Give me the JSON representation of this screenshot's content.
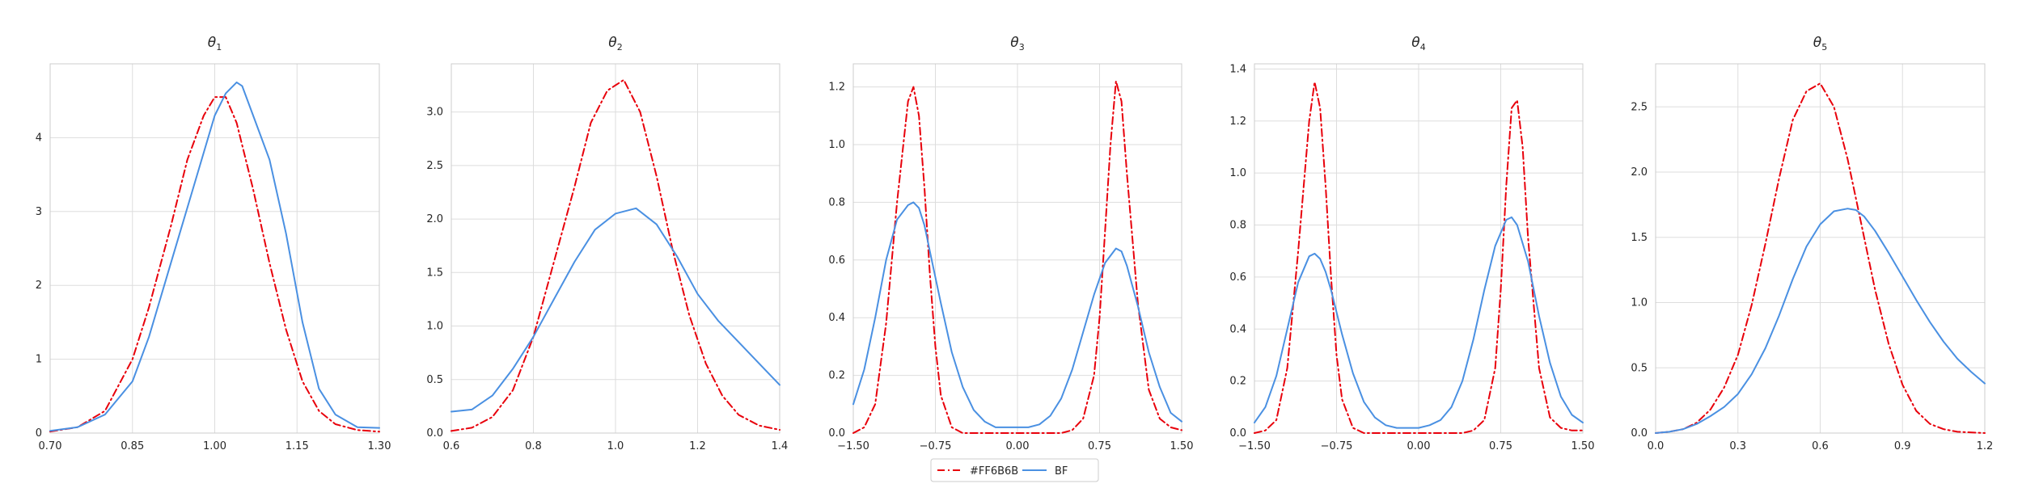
{
  "colors": {
    "series_1": "#e8000b",
    "series_2": "#4a90e2",
    "grid": "#dddddd",
    "axis": "#cccccc",
    "legend_border": "#cccccc"
  },
  "legend": {
    "placement": "bottom-center",
    "entries": [
      "#FF6B6B",
      "BF"
    ]
  },
  "chart_data": [
    {
      "type": "line",
      "title_symbol": "θ",
      "title_sub": "1",
      "xlim": [
        0.7,
        1.3
      ],
      "ylim": [
        0,
        5
      ],
      "xticks": [
        0.7,
        0.85,
        1.0,
        1.15,
        1.3
      ],
      "xtick_labels": [
        "0.70",
        "0.85",
        "1.00",
        "1.15",
        "1.30"
      ],
      "yticks": [
        0,
        1,
        2,
        3,
        4
      ],
      "ytick_labels": [
        "0",
        "1",
        "2",
        "3",
        "4"
      ],
      "grid": true,
      "series": [
        {
          "name": "#FF6B6B",
          "style": "dashdot",
          "x": [
            0.7,
            0.75,
            0.8,
            0.85,
            0.88,
            0.92,
            0.95,
            0.98,
            1.0,
            1.02,
            1.04,
            1.07,
            1.1,
            1.13,
            1.16,
            1.19,
            1.22,
            1.26,
            1.3
          ],
          "y": [
            0.02,
            0.08,
            0.3,
            1.0,
            1.7,
            2.8,
            3.7,
            4.3,
            4.55,
            4.55,
            4.2,
            3.3,
            2.3,
            1.4,
            0.7,
            0.3,
            0.12,
            0.04,
            0.02
          ]
        },
        {
          "name": "BF",
          "style": "solid",
          "x": [
            0.7,
            0.75,
            0.8,
            0.85,
            0.88,
            0.92,
            0.96,
            1.0,
            1.02,
            1.04,
            1.05,
            1.07,
            1.1,
            1.13,
            1.16,
            1.19,
            1.22,
            1.26,
            1.3
          ],
          "y": [
            0.03,
            0.08,
            0.25,
            0.7,
            1.3,
            2.3,
            3.3,
            4.3,
            4.6,
            4.75,
            4.7,
            4.3,
            3.7,
            2.7,
            1.5,
            0.6,
            0.25,
            0.08,
            0.07
          ]
        }
      ]
    },
    {
      "type": "line",
      "title_symbol": "θ",
      "title_sub": "2",
      "xlim": [
        0.6,
        1.4
      ],
      "ylim": [
        0,
        3.45
      ],
      "xticks": [
        0.6,
        0.8,
        1.0,
        1.2,
        1.4
      ],
      "xtick_labels": [
        "0.6",
        "0.8",
        "1.0",
        "1.2",
        "1.4"
      ],
      "yticks": [
        0,
        0.5,
        1.0,
        1.5,
        2.0,
        2.5,
        3.0
      ],
      "ytick_labels": [
        "0.0",
        "0.5",
        "1.0",
        "1.5",
        "2.0",
        "2.5",
        "3.0"
      ],
      "grid": true,
      "series": [
        {
          "name": "#FF6B6B",
          "style": "dashdot",
          "x": [
            0.6,
            0.65,
            0.7,
            0.75,
            0.8,
            0.85,
            0.9,
            0.94,
            0.98,
            1.02,
            1.06,
            1.1,
            1.14,
            1.18,
            1.22,
            1.26,
            1.3,
            1.35,
            1.4
          ],
          "y": [
            0.02,
            0.05,
            0.15,
            0.4,
            0.9,
            1.6,
            2.3,
            2.9,
            3.2,
            3.3,
            3.0,
            2.4,
            1.7,
            1.1,
            0.65,
            0.35,
            0.17,
            0.07,
            0.03
          ]
        },
        {
          "name": "BF",
          "style": "solid",
          "x": [
            0.6,
            0.65,
            0.7,
            0.75,
            0.8,
            0.85,
            0.9,
            0.95,
            1.0,
            1.05,
            1.1,
            1.15,
            1.2,
            1.25,
            1.3,
            1.35,
            1.4
          ],
          "y": [
            0.2,
            0.22,
            0.35,
            0.6,
            0.9,
            1.25,
            1.6,
            1.9,
            2.05,
            2.1,
            1.95,
            1.65,
            1.3,
            1.05,
            0.85,
            0.65,
            0.45
          ]
        }
      ]
    },
    {
      "type": "line",
      "title_symbol": "θ",
      "title_sub": "3",
      "xlim": [
        -1.5,
        1.5
      ],
      "ylim": [
        0,
        1.28
      ],
      "xticks": [
        -1.5,
        -0.75,
        0.0,
        0.75,
        1.5
      ],
      "xtick_labels": [
        "−1.50",
        "−0.75",
        "0.00",
        "0.75",
        "1.50"
      ],
      "yticks": [
        0,
        0.2,
        0.4,
        0.6,
        0.8,
        1.0,
        1.2
      ],
      "ytick_labels": [
        "0.0",
        "0.2",
        "0.4",
        "0.6",
        "0.8",
        "1.0",
        "1.2"
      ],
      "grid": true,
      "series": [
        {
          "name": "#FF6B6B",
          "style": "dashdot",
          "x": [
            -1.5,
            -1.4,
            -1.3,
            -1.2,
            -1.1,
            -1.0,
            -0.95,
            -0.9,
            -0.85,
            -0.8,
            -0.75,
            -0.7,
            -0.6,
            -0.5,
            -0.4,
            -0.2,
            0.0,
            0.2,
            0.4,
            0.5,
            0.6,
            0.7,
            0.75,
            0.8,
            0.85,
            0.9,
            0.95,
            1.0,
            1.1,
            1.2,
            1.3,
            1.4,
            1.5
          ],
          "y": [
            0.0,
            0.02,
            0.1,
            0.38,
            0.8,
            1.15,
            1.2,
            1.1,
            0.85,
            0.55,
            0.3,
            0.13,
            0.02,
            0.0,
            0.0,
            0.0,
            0.0,
            0.0,
            0.0,
            0.01,
            0.05,
            0.2,
            0.4,
            0.7,
            1.0,
            1.22,
            1.15,
            0.9,
            0.45,
            0.15,
            0.05,
            0.02,
            0.01
          ]
        },
        {
          "name": "BF",
          "style": "solid",
          "x": [
            -1.5,
            -1.4,
            -1.3,
            -1.2,
            -1.1,
            -1.0,
            -0.95,
            -0.9,
            -0.85,
            -0.8,
            -0.7,
            -0.6,
            -0.5,
            -0.4,
            -0.3,
            -0.2,
            -0.1,
            0.0,
            0.1,
            0.2,
            0.3,
            0.4,
            0.5,
            0.6,
            0.7,
            0.8,
            0.9,
            0.95,
            1.0,
            1.1,
            1.2,
            1.3,
            1.4,
            1.5
          ],
          "y": [
            0.1,
            0.22,
            0.4,
            0.6,
            0.74,
            0.79,
            0.8,
            0.78,
            0.72,
            0.63,
            0.45,
            0.28,
            0.16,
            0.08,
            0.04,
            0.02,
            0.02,
            0.02,
            0.02,
            0.03,
            0.06,
            0.12,
            0.22,
            0.35,
            0.48,
            0.59,
            0.64,
            0.63,
            0.58,
            0.44,
            0.28,
            0.16,
            0.07,
            0.04
          ]
        }
      ]
    },
    {
      "type": "line",
      "title_symbol": "θ",
      "title_sub": "4",
      "xlim": [
        -1.5,
        1.5
      ],
      "ylim": [
        0,
        1.42
      ],
      "xticks": [
        -1.5,
        -0.75,
        0.0,
        0.75,
        1.5
      ],
      "xtick_labels": [
        "−1.50",
        "−0.75",
        "0.00",
        "0.75",
        "1.50"
      ],
      "yticks": [
        0,
        0.2,
        0.4,
        0.6,
        0.8,
        1.0,
        1.2,
        1.4
      ],
      "ytick_labels": [
        "0.0",
        "0.2",
        "0.4",
        "0.6",
        "0.8",
        "1.0",
        "1.2",
        "1.4"
      ],
      "grid": true,
      "series": [
        {
          "name": "#FF6B6B",
          "style": "dashdot",
          "x": [
            -1.5,
            -1.4,
            -1.3,
            -1.2,
            -1.1,
            -1.0,
            -0.95,
            -0.9,
            -0.85,
            -0.8,
            -0.75,
            -0.7,
            -0.6,
            -0.5,
            -0.4,
            -0.2,
            0.0,
            0.2,
            0.4,
            0.5,
            0.6,
            0.7,
            0.75,
            0.8,
            0.85,
            0.9,
            0.95,
            1.0,
            1.1,
            1.2,
            1.3,
            1.4,
            1.5
          ],
          "y": [
            0.0,
            0.01,
            0.05,
            0.25,
            0.7,
            1.2,
            1.35,
            1.25,
            0.95,
            0.6,
            0.3,
            0.13,
            0.02,
            0.0,
            0.0,
            0.0,
            0.0,
            0.0,
            0.0,
            0.01,
            0.05,
            0.25,
            0.55,
            0.95,
            1.25,
            1.28,
            1.1,
            0.75,
            0.25,
            0.06,
            0.02,
            0.01,
            0.01
          ]
        },
        {
          "name": "BF",
          "style": "solid",
          "x": [
            -1.5,
            -1.4,
            -1.3,
            -1.2,
            -1.1,
            -1.0,
            -0.95,
            -0.9,
            -0.85,
            -0.8,
            -0.7,
            -0.6,
            -0.5,
            -0.4,
            -0.3,
            -0.2,
            -0.1,
            0.0,
            0.1,
            0.2,
            0.3,
            0.4,
            0.5,
            0.6,
            0.7,
            0.8,
            0.85,
            0.9,
            1.0,
            1.1,
            1.2,
            1.3,
            1.4,
            1.5
          ],
          "y": [
            0.04,
            0.1,
            0.22,
            0.4,
            0.58,
            0.68,
            0.69,
            0.67,
            0.62,
            0.55,
            0.38,
            0.23,
            0.12,
            0.06,
            0.03,
            0.02,
            0.02,
            0.02,
            0.03,
            0.05,
            0.1,
            0.2,
            0.36,
            0.55,
            0.72,
            0.82,
            0.83,
            0.8,
            0.66,
            0.45,
            0.27,
            0.14,
            0.07,
            0.04
          ]
        }
      ]
    },
    {
      "type": "line",
      "title_symbol": "θ",
      "title_sub": "5",
      "xlim": [
        0.0,
        1.2
      ],
      "ylim": [
        0,
        2.83
      ],
      "xticks": [
        0.0,
        0.3,
        0.6,
        0.9,
        1.2
      ],
      "xtick_labels": [
        "0.0",
        "0.3",
        "0.6",
        "0.9",
        "1.2"
      ],
      "yticks": [
        0,
        0.5,
        1.0,
        1.5,
        2.0,
        2.5
      ],
      "ytick_labels": [
        "0.0",
        "0.5",
        "1.0",
        "1.5",
        "2.0",
        "2.5"
      ],
      "grid": true,
      "series": [
        {
          "name": "#FF6B6B",
          "style": "dashdot",
          "x": [
            0.0,
            0.05,
            0.1,
            0.15,
            0.2,
            0.25,
            0.3,
            0.35,
            0.4,
            0.45,
            0.5,
            0.55,
            0.6,
            0.65,
            0.7,
            0.75,
            0.8,
            0.85,
            0.9,
            0.95,
            1.0,
            1.05,
            1.1,
            1.2
          ],
          "y": [
            0.0,
            0.01,
            0.03,
            0.08,
            0.18,
            0.35,
            0.6,
            0.98,
            1.45,
            1.95,
            2.4,
            2.62,
            2.68,
            2.5,
            2.1,
            1.6,
            1.1,
            0.68,
            0.37,
            0.17,
            0.07,
            0.03,
            0.01,
            0.0
          ]
        },
        {
          "name": "BF",
          "style": "solid",
          "x": [
            0.0,
            0.05,
            0.1,
            0.15,
            0.2,
            0.25,
            0.3,
            0.35,
            0.4,
            0.45,
            0.5,
            0.55,
            0.6,
            0.65,
            0.7,
            0.73,
            0.76,
            0.8,
            0.85,
            0.9,
            0.95,
            1.0,
            1.05,
            1.1,
            1.15,
            1.2
          ],
          "y": [
            0.0,
            0.01,
            0.03,
            0.07,
            0.13,
            0.2,
            0.3,
            0.45,
            0.65,
            0.9,
            1.18,
            1.43,
            1.6,
            1.7,
            1.72,
            1.71,
            1.66,
            1.55,
            1.38,
            1.2,
            1.02,
            0.85,
            0.7,
            0.57,
            0.47,
            0.38
          ]
        }
      ]
    }
  ]
}
